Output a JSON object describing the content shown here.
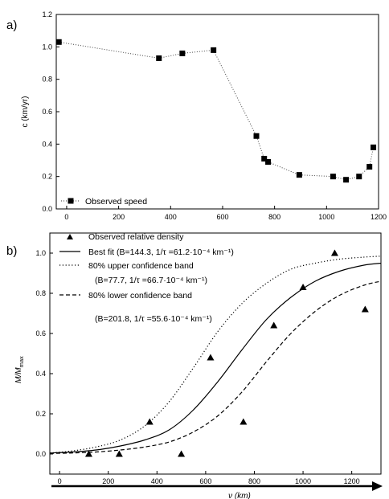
{
  "chart_data": [
    {
      "panel_label": "a)",
      "type": "scatter",
      "title": "",
      "xlabel": "",
      "ylabel": "c (km/yr)",
      "xlim": [
        -40,
        1200
      ],
      "ylim": [
        0.0,
        1.2
      ],
      "x_ticks": [
        "0",
        "200",
        "400",
        "600",
        "800",
        "1000",
        "1200"
      ],
      "y_ticks": [
        "0.0",
        "0.2",
        "0.4",
        "0.6",
        "0.8",
        "1.0",
        "1.2"
      ],
      "grid": false,
      "legend_position": "bottom-left",
      "series": [
        {
          "name": "Observed speed",
          "marker": "square",
          "line": "dotted",
          "x": [
            -30,
            355,
            445,
            565,
            730,
            760,
            775,
            895,
            1025,
            1075,
            1125,
            1165,
            1180
          ],
          "y": [
            1.03,
            0.93,
            0.96,
            0.98,
            0.45,
            0.31,
            0.29,
            0.21,
            0.2,
            0.18,
            0.2,
            0.26,
            0.38
          ]
        }
      ]
    },
    {
      "panel_label": "b)",
      "type": "line",
      "title": "",
      "xlabel": "ν (km)",
      "ylabel_main": "M/M",
      "ylabel_sub": "max",
      "xlim": [
        -40,
        1320
      ],
      "ylim": [
        -0.1,
        1.1
      ],
      "x_ticks": [
        "0",
        "200",
        "400",
        "600",
        "800",
        "1000",
        "1200"
      ],
      "y_ticks": [
        "0.0",
        "0.2",
        "0.4",
        "0.6",
        "0.8",
        "1.0"
      ],
      "grid": false,
      "legend_position": "top-left",
      "series": [
        {
          "name": "Observed relative density",
          "marker": "triangle",
          "x": [
            120,
            245,
            370,
            500,
            620,
            755,
            880,
            1000,
            1130,
            1255
          ],
          "y": [
            0.0,
            0.0,
            0.16,
            0.0,
            0.48,
            0.16,
            0.64,
            0.83,
            1.0,
            0.72
          ]
        },
        {
          "name": "Best fit (B=144.3, 1/τ =61.2·10⁻⁴ km⁻¹)",
          "line": "solid",
          "x": [
            -40,
            50,
            150,
            250,
            350,
            450,
            550,
            650,
            750,
            850,
            950,
            1050,
            1150,
            1250,
            1320
          ],
          "y": [
            0.005,
            0.01,
            0.02,
            0.04,
            0.07,
            0.12,
            0.22,
            0.36,
            0.52,
            0.67,
            0.78,
            0.86,
            0.91,
            0.94,
            0.95
          ]
        },
        {
          "name_line1": "80% upper confidence band",
          "name_line2": "(B=77.7, 1/τ =66.7·10⁻⁴ km⁻¹)",
          "line": "dotted",
          "x": [
            -40,
            50,
            150,
            250,
            350,
            450,
            550,
            650,
            750,
            850,
            950,
            1050,
            1150,
            1250,
            1320
          ],
          "y": [
            0.005,
            0.015,
            0.035,
            0.07,
            0.14,
            0.26,
            0.43,
            0.61,
            0.75,
            0.85,
            0.92,
            0.95,
            0.97,
            0.98,
            0.985
          ]
        },
        {
          "name_line1": "80% lower confidence band",
          "name_line2": "(B=201.8, 1/τ =55.6·10⁻⁴ km⁻¹)",
          "line": "dashed",
          "x": [
            -40,
            50,
            150,
            250,
            350,
            450,
            550,
            650,
            750,
            850,
            950,
            1050,
            1150,
            1250,
            1320
          ],
          "y": [
            0.003,
            0.005,
            0.01,
            0.02,
            0.035,
            0.06,
            0.11,
            0.19,
            0.31,
            0.46,
            0.6,
            0.71,
            0.79,
            0.84,
            0.86
          ]
        }
      ]
    }
  ]
}
